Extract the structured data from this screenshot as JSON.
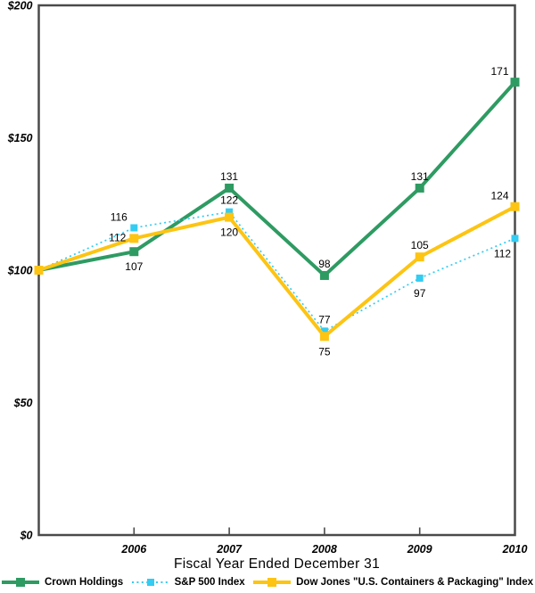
{
  "chart_data": {
    "type": "line",
    "title": "",
    "xlabel": "Fiscal Year Ended December 31",
    "ylabel": "",
    "categories": [
      "",
      "2006",
      "2007",
      "2008",
      "2009",
      "2010"
    ],
    "y_ticks": [
      {
        "label": "$0",
        "value": 0
      },
      {
        "label": "$50",
        "value": 50
      },
      {
        "label": "$100",
        "value": 100
      },
      {
        "label": "$150",
        "value": 150
      },
      {
        "label": "$200",
        "value": 200
      }
    ],
    "ylim": [
      0,
      200
    ],
    "grid": false,
    "legend_position": "bottom",
    "axis_color": "#4a4a4a",
    "text_color": "#000000",
    "series": [
      {
        "name": "Crown Holdings",
        "color": "#2e9b62",
        "line_style": "solid",
        "line_width": 4,
        "marker": "square",
        "marker_size": 10,
        "values": [
          100,
          107,
          131,
          98,
          131,
          171
        ],
        "label_positions": [
          "none",
          "below",
          "above",
          "above",
          "above",
          "above-left"
        ]
      },
      {
        "name": "S&P 500 Index",
        "color": "#33ccf2",
        "line_style": "dotted",
        "line_width": 1.7,
        "marker": "square",
        "marker_size": 8,
        "values": [
          100,
          116,
          122,
          77,
          97,
          112
        ],
        "label_positions": [
          "none",
          "above-left",
          "above",
          "above",
          "below",
          "below-left"
        ]
      },
      {
        "name": "Dow Jones \"U.S. Containers & Packaging\" Index",
        "color": "#fdc412",
        "line_style": "solid",
        "line_width": 4,
        "marker": "square",
        "marker_size": 10,
        "values": [
          100,
          112,
          120,
          75,
          105,
          124
        ],
        "label_positions": [
          "none",
          "left",
          "below",
          "below",
          "above",
          "above-left"
        ]
      }
    ]
  }
}
